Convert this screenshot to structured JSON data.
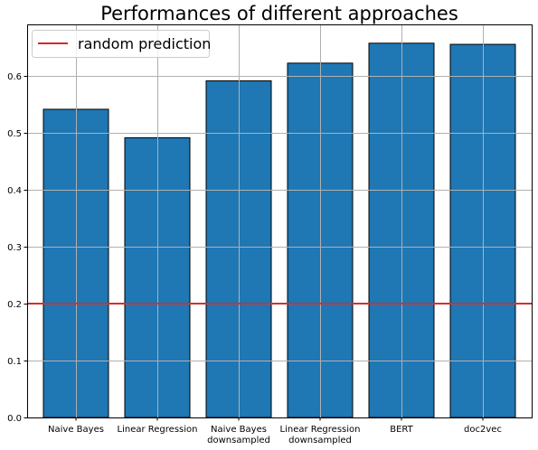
{
  "chart_data": {
    "type": "bar",
    "title": "Performances of different approaches",
    "xlabel": "",
    "ylabel": "",
    "categories": [
      [
        "Naive Bayes"
      ],
      [
        "Linear Regression"
      ],
      [
        "Naive Bayes",
        "downsampled"
      ],
      [
        "Linear Regression",
        "downsampled"
      ],
      [
        "BERT"
      ],
      [
        "doc2vec"
      ]
    ],
    "values": [
      0.541,
      0.491,
      0.591,
      0.622,
      0.657,
      0.655
    ],
    "ylim": [
      0,
      0.69
    ],
    "yticks": [
      "0.0",
      "0.1",
      "0.2",
      "0.3",
      "0.4",
      "0.5",
      "0.6"
    ],
    "grid": true,
    "bar_color": "#1f77b4",
    "reference_line": {
      "label": "random prediction",
      "value": 0.2,
      "color": "#d62728"
    },
    "legend": {
      "location": "top-left",
      "entries": [
        "random prediction"
      ]
    }
  }
}
